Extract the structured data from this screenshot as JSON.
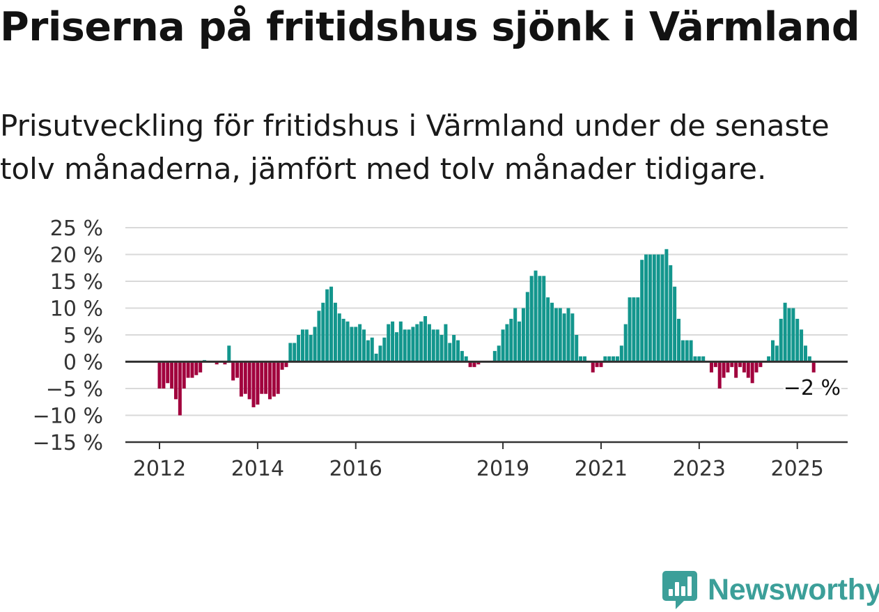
{
  "title": "Priserna på fritidshus sjönk i Värmland",
  "subtitle": "Prisutveckling för fritidshus i Värmland under de senaste tolv månaderna, jämfört med tolv månader tidigare.",
  "brand": {
    "name": "Newsworthy",
    "icon": "newsworthy-logo-icon",
    "color": "#3c9f99"
  },
  "colors": {
    "positive": "#13968d",
    "negative": "#a1003d",
    "grid": "#d9d9d9",
    "axis": "#333333"
  },
  "chart_data": {
    "type": "bar",
    "x_start": "2012-01",
    "x_end": "2025-06",
    "ylim": [
      -15,
      25
    ],
    "yticks": [
      25,
      20,
      15,
      10,
      5,
      0,
      -5,
      -10,
      -15
    ],
    "ytick_labels": [
      "25 %",
      "20 %",
      "15 %",
      "10 %",
      "5 %",
      "0 %",
      "−5 %",
      "−10 %",
      "−15 %"
    ],
    "xticks": [
      "2012",
      "2014",
      "2016",
      "2019",
      "2021",
      "2023",
      "2025"
    ],
    "annotation": "−2 %",
    "grid": true,
    "series": [
      {
        "points": [
          [
            "2012-01",
            -5
          ],
          [
            "2012-02",
            -5
          ],
          [
            "2012-03",
            -4
          ],
          [
            "2012-04",
            -5
          ],
          [
            "2012-05",
            -7
          ],
          [
            "2012-06",
            -10
          ],
          [
            "2012-07",
            -5
          ],
          [
            "2012-08",
            -3
          ],
          [
            "2012-09",
            -3
          ],
          [
            "2012-10",
            -2.5
          ],
          [
            "2012-11",
            -2
          ],
          [
            "2012-12",
            0.3
          ],
          [
            "2013-03",
            -0.5
          ],
          [
            "2013-05",
            -0.5
          ],
          [
            "2013-06",
            3
          ],
          [
            "2013-07",
            -3.5
          ],
          [
            "2013-08",
            -3
          ],
          [
            "2013-09",
            -6.5
          ],
          [
            "2013-10",
            -6
          ],
          [
            "2013-11",
            -7
          ],
          [
            "2013-12",
            -8.5
          ],
          [
            "2014-01",
            -8
          ],
          [
            "2014-02",
            -6
          ],
          [
            "2014-03",
            -6
          ],
          [
            "2014-04",
            -7
          ],
          [
            "2014-05",
            -6.5
          ],
          [
            "2014-06",
            -6
          ],
          [
            "2014-07",
            -1.5
          ],
          [
            "2014-08",
            -1
          ],
          [
            "2014-09",
            3.5
          ],
          [
            "2014-10",
            3.5
          ],
          [
            "2014-11",
            5
          ],
          [
            "2014-12",
            6
          ],
          [
            "2015-01",
            6
          ],
          [
            "2015-02",
            5
          ],
          [
            "2015-03",
            6.5
          ],
          [
            "2015-04",
            9.5
          ],
          [
            "2015-05",
            11
          ],
          [
            "2015-06",
            13.5
          ],
          [
            "2015-07",
            14
          ],
          [
            "2015-08",
            11
          ],
          [
            "2015-09",
            9
          ],
          [
            "2015-10",
            8
          ],
          [
            "2015-11",
            7.5
          ],
          [
            "2015-12",
            6.5
          ],
          [
            "2016-01",
            6.5
          ],
          [
            "2016-02",
            7
          ],
          [
            "2016-03",
            6
          ],
          [
            "2016-04",
            4
          ],
          [
            "2016-05",
            4.5
          ],
          [
            "2016-06",
            1.5
          ],
          [
            "2016-07",
            3
          ],
          [
            "2016-08",
            4.5
          ],
          [
            "2016-09",
            7
          ],
          [
            "2016-10",
            7.5
          ],
          [
            "2016-11",
            5.5
          ],
          [
            "2016-12",
            7.5
          ],
          [
            "2017-01",
            6
          ],
          [
            "2017-02",
            6
          ],
          [
            "2017-03",
            6.5
          ],
          [
            "2017-04",
            7
          ],
          [
            "2017-05",
            7.5
          ],
          [
            "2017-06",
            8.5
          ],
          [
            "2017-07",
            7
          ],
          [
            "2017-08",
            6
          ],
          [
            "2017-09",
            6
          ],
          [
            "2017-10",
            5
          ],
          [
            "2017-11",
            7
          ],
          [
            "2017-12",
            3.5
          ],
          [
            "2018-01",
            5
          ],
          [
            "2018-02",
            4
          ],
          [
            "2018-03",
            2
          ],
          [
            "2018-04",
            1
          ],
          [
            "2018-05",
            -1
          ],
          [
            "2018-06",
            -1
          ],
          [
            "2018-07",
            -0.5
          ],
          [
            "2018-11",
            2
          ],
          [
            "2018-12",
            3
          ],
          [
            "2019-01",
            6
          ],
          [
            "2019-02",
            7
          ],
          [
            "2019-03",
            8
          ],
          [
            "2019-04",
            10
          ],
          [
            "2019-05",
            7.5
          ],
          [
            "2019-06",
            10
          ],
          [
            "2019-07",
            13
          ],
          [
            "2019-08",
            16
          ],
          [
            "2019-09",
            17
          ],
          [
            "2019-10",
            16
          ],
          [
            "2019-11",
            16
          ],
          [
            "2019-12",
            12
          ],
          [
            "2020-01",
            11
          ],
          [
            "2020-02",
            10
          ],
          [
            "2020-03",
            10
          ],
          [
            "2020-04",
            9
          ],
          [
            "2020-05",
            10
          ],
          [
            "2020-06",
            9
          ],
          [
            "2020-07",
            5
          ],
          [
            "2020-08",
            1
          ],
          [
            "2020-09",
            1
          ],
          [
            "2020-11",
            -2
          ],
          [
            "2020-12",
            -1
          ],
          [
            "2021-01",
            -1
          ],
          [
            "2021-02",
            1
          ],
          [
            "2021-03",
            1
          ],
          [
            "2021-04",
            1
          ],
          [
            "2021-05",
            1
          ],
          [
            "2021-06",
            3
          ],
          [
            "2021-07",
            7
          ],
          [
            "2021-08",
            12
          ],
          [
            "2021-09",
            12
          ],
          [
            "2021-10",
            12
          ],
          [
            "2021-11",
            19
          ],
          [
            "2021-12",
            20
          ],
          [
            "2022-01",
            20
          ],
          [
            "2022-02",
            20
          ],
          [
            "2022-03",
            20
          ],
          [
            "2022-04",
            20
          ],
          [
            "2022-05",
            21
          ],
          [
            "2022-06",
            18
          ],
          [
            "2022-07",
            14
          ],
          [
            "2022-08",
            8
          ],
          [
            "2022-09",
            4
          ],
          [
            "2022-10",
            4
          ],
          [
            "2022-11",
            4
          ],
          [
            "2022-12",
            1
          ],
          [
            "2023-01",
            1
          ],
          [
            "2023-02",
            1
          ],
          [
            "2023-04",
            -2
          ],
          [
            "2023-05",
            -1
          ],
          [
            "2023-06",
            -5
          ],
          [
            "2023-07",
            -3
          ],
          [
            "2023-08",
            -2
          ],
          [
            "2023-09",
            -1
          ],
          [
            "2023-10",
            -3
          ],
          [
            "2023-11",
            -1
          ],
          [
            "2023-12",
            -2
          ],
          [
            "2024-01",
            -3
          ],
          [
            "2024-02",
            -4
          ],
          [
            "2024-03",
            -2
          ],
          [
            "2024-04",
            -1
          ],
          [
            "2024-06",
            1
          ],
          [
            "2024-07",
            4
          ],
          [
            "2024-08",
            3
          ],
          [
            "2024-09",
            8
          ],
          [
            "2024-10",
            11
          ],
          [
            "2024-11",
            10
          ],
          [
            "2024-12",
            10
          ],
          [
            "2025-01",
            8
          ],
          [
            "2025-02",
            6
          ],
          [
            "2025-03",
            3
          ],
          [
            "2025-04",
            1
          ],
          [
            "2025-05",
            -2
          ]
        ]
      }
    ]
  }
}
